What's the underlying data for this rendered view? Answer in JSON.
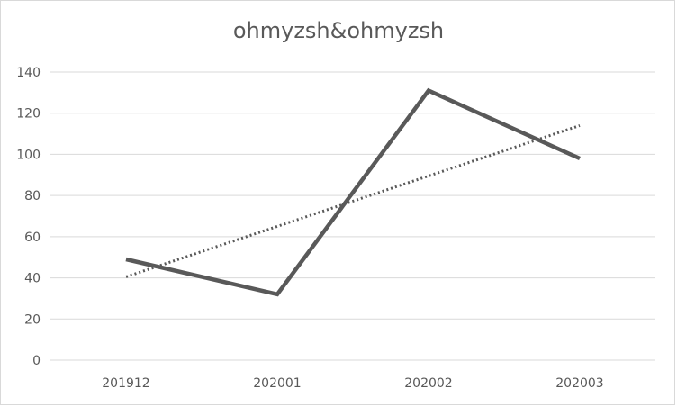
{
  "chart_data": {
    "type": "line",
    "title": "ohmyzsh&ohmyzsh",
    "xlabel": "",
    "ylabel": "",
    "categories": [
      "201912",
      "202001",
      "202002",
      "202003"
    ],
    "series": [
      {
        "values": [
          49,
          32,
          131,
          98
        ],
        "color": "#595959"
      }
    ],
    "trendline": {
      "style": "dotted",
      "color": "#595959",
      "start": 40.5,
      "end": 114
    },
    "ylim": [
      0,
      140
    ],
    "yticks": [
      "0",
      "20",
      "40",
      "60",
      "80",
      "100",
      "120",
      "140"
    ],
    "grid": true,
    "legend": "none"
  }
}
